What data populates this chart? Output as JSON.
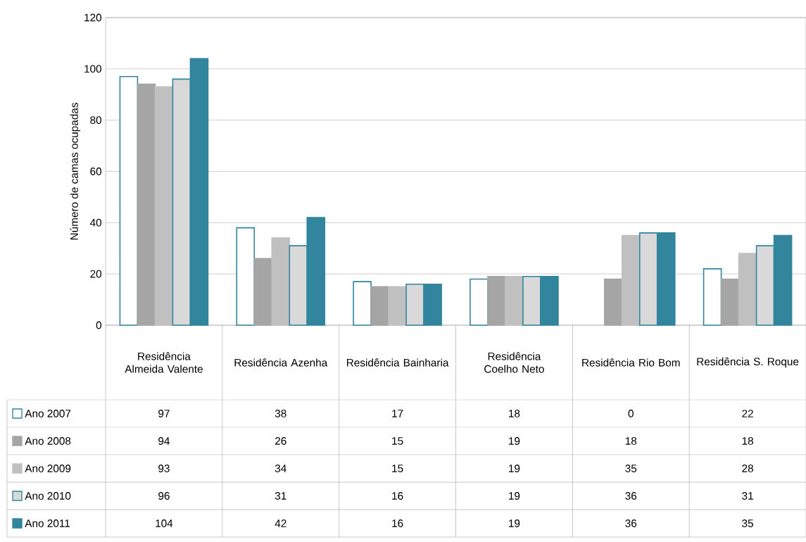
{
  "chart_data": {
    "type": "bar",
    "ylabel": "Número de camas ocupadas",
    "categories": [
      "Residência Almeida Valente",
      "Residência Azenha",
      "Residência Bainharia",
      "Residência Coelho Neto",
      "Residência Rio Bom",
      "Residência S. Roque"
    ],
    "series": [
      {
        "name": "Ano 2007",
        "color": "#ffffff",
        "values": [
          97,
          38,
          17,
          18,
          0,
          22
        ]
      },
      {
        "name": "Ano 2008",
        "color": "#a5a5a5",
        "values": [
          94,
          26,
          15,
          19,
          18,
          18
        ]
      },
      {
        "name": "Ano 2009",
        "color": "#c0c0c0",
        "values": [
          93,
          34,
          15,
          19,
          35,
          28
        ]
      },
      {
        "name": "Ano 2010",
        "color": "#d9d9d9",
        "values": [
          96,
          31,
          16,
          19,
          36,
          31
        ]
      },
      {
        "name": "Ano 2011",
        "color": "#31859c",
        "values": [
          104,
          42,
          16,
          19,
          36,
          35
        ]
      }
    ],
    "ylim": [
      0,
      120
    ],
    "yticks": [
      0,
      20,
      40,
      60,
      80,
      100,
      120
    ],
    "grid": "y",
    "legend": "bottom",
    "data_labels": true
  }
}
